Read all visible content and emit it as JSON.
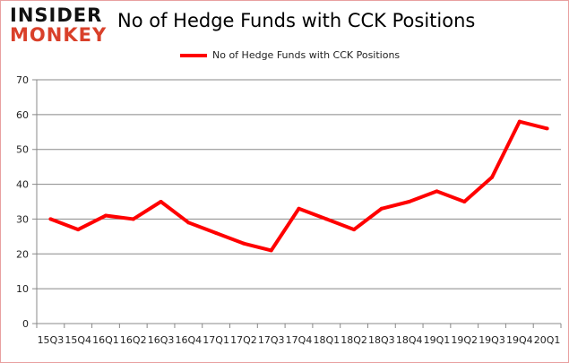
{
  "logo": {
    "line1": "INSIDER",
    "line2": "MONKEY"
  },
  "chart_data": {
    "type": "line",
    "title": "No of Hedge Funds with CCK Positions",
    "categories": [
      "15Q3",
      "15Q4",
      "16Q1",
      "16Q2",
      "16Q3",
      "16Q4",
      "17Q1",
      "17Q2",
      "17Q3",
      "17Q4",
      "18Q1",
      "18Q2",
      "18Q3",
      "18Q4",
      "19Q1",
      "19Q2",
      "19Q3",
      "19Q4",
      "20Q1"
    ],
    "series": [
      {
        "name": "No of Hedge Funds with CCK Positions",
        "values": [
          30,
          27,
          31,
          30,
          35,
          29,
          26,
          23,
          21,
          33,
          30,
          27,
          33,
          35,
          38,
          35,
          42,
          58,
          56
        ],
        "color": "#ff0000"
      }
    ],
    "ylim": [
      0,
      70
    ],
    "yticks": [
      0,
      10,
      20,
      30,
      40,
      50,
      60,
      70
    ],
    "grid": true,
    "legend": "top-center",
    "xlabel": "",
    "ylabel": ""
  }
}
